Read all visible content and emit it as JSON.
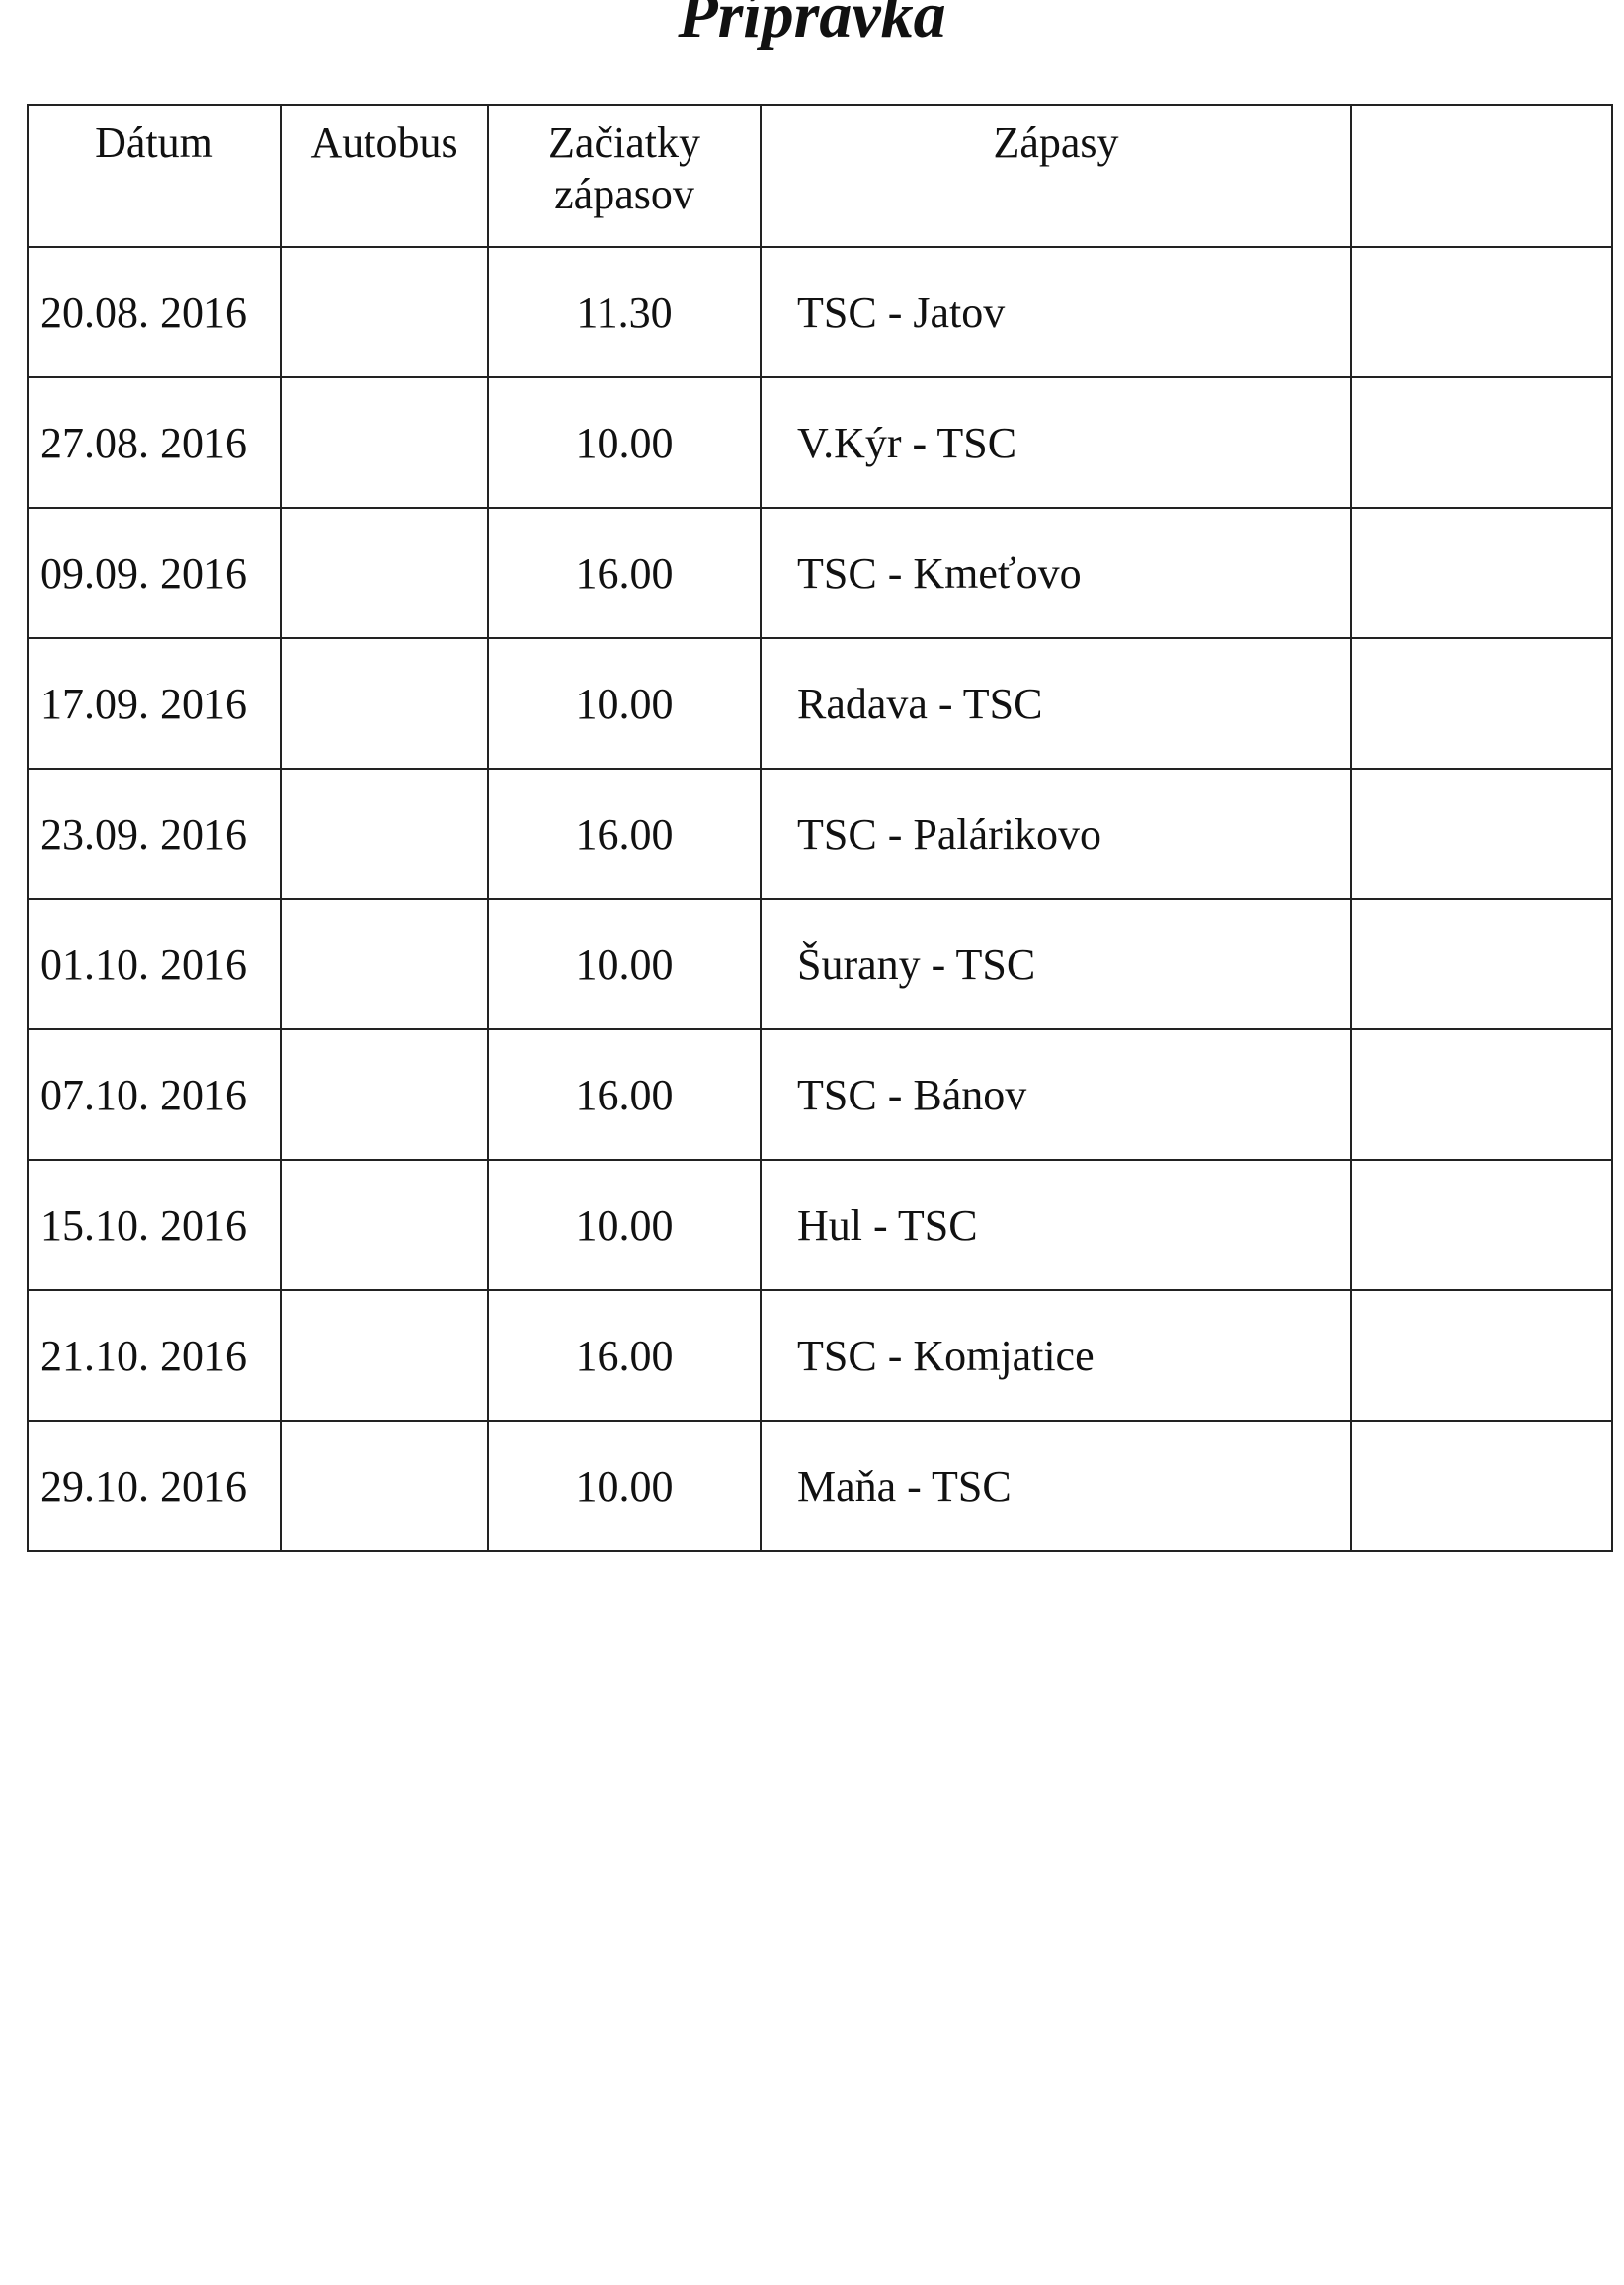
{
  "title": "Prípravka",
  "table": {
    "headers": [
      "Dátum",
      "Autobus",
      "Začiatky zápasov",
      "Zápasy",
      ""
    ],
    "rows": [
      {
        "date": "20.08. 2016",
        "bus": "",
        "time": "11.30",
        "match": "TSC - Jatov",
        "extra": ""
      },
      {
        "date": "27.08. 2016",
        "bus": "",
        "time": "10.00",
        "match": "V.Kýr - TSC",
        "extra": ""
      },
      {
        "date": "09.09. 2016",
        "bus": "",
        "time": "16.00",
        "match": "TSC - Kmeťovo",
        "extra": ""
      },
      {
        "date": "17.09. 2016",
        "bus": "",
        "time": "10.00",
        "match": "Radava - TSC",
        "extra": ""
      },
      {
        "date": "23.09. 2016",
        "bus": "",
        "time": "16.00",
        "match": "TSC - Palárikovo",
        "extra": ""
      },
      {
        "date": "01.10. 2016",
        "bus": "",
        "time": "10.00",
        "match": "Šurany - TSC",
        "extra": ""
      },
      {
        "date": "07.10. 2016",
        "bus": "",
        "time": "16.00",
        "match": "TSC - Bánov",
        "extra": ""
      },
      {
        "date": "15.10. 2016",
        "bus": "",
        "time": "10.00",
        "match": "Hul - TSC",
        "extra": ""
      },
      {
        "date": "21.10. 2016",
        "bus": "",
        "time": "16.00",
        "match": "TSC - Komjatice",
        "extra": ""
      },
      {
        "date": "29.10. 2016",
        "bus": "",
        "time": "10.00",
        "match": "Maňa - TSC",
        "extra": ""
      }
    ]
  }
}
